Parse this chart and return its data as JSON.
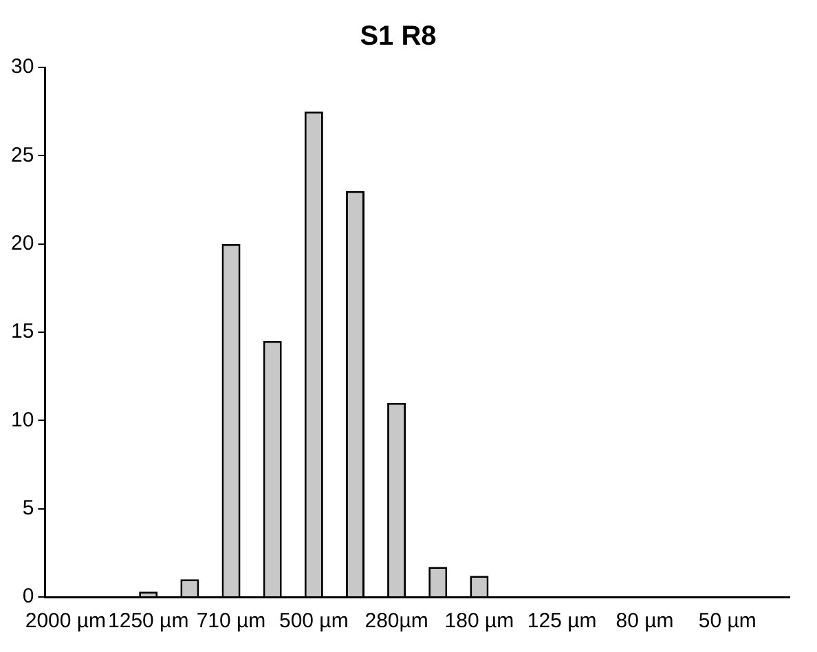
{
  "chart_data": {
    "type": "bar",
    "title": "S1 R8",
    "categories": [
      "2000 µm",
      null,
      "1250 µm",
      null,
      "710 µm",
      null,
      "500 µm",
      null,
      "280µm",
      null,
      "180 µm",
      null,
      "125 µm",
      null,
      "80 µm",
      null,
      "50 µm",
      null
    ],
    "values": [
      0,
      0,
      0.3,
      1,
      20,
      14.5,
      27.5,
      23,
      11,
      1.7,
      1.2,
      0,
      0,
      0,
      0,
      0,
      0,
      0
    ],
    "color": "#c8c8c8",
    "ylim": [
      0,
      30
    ],
    "yticks": [
      0,
      5,
      10,
      15,
      20,
      25,
      30
    ],
    "grid": false,
    "legend": false
  }
}
